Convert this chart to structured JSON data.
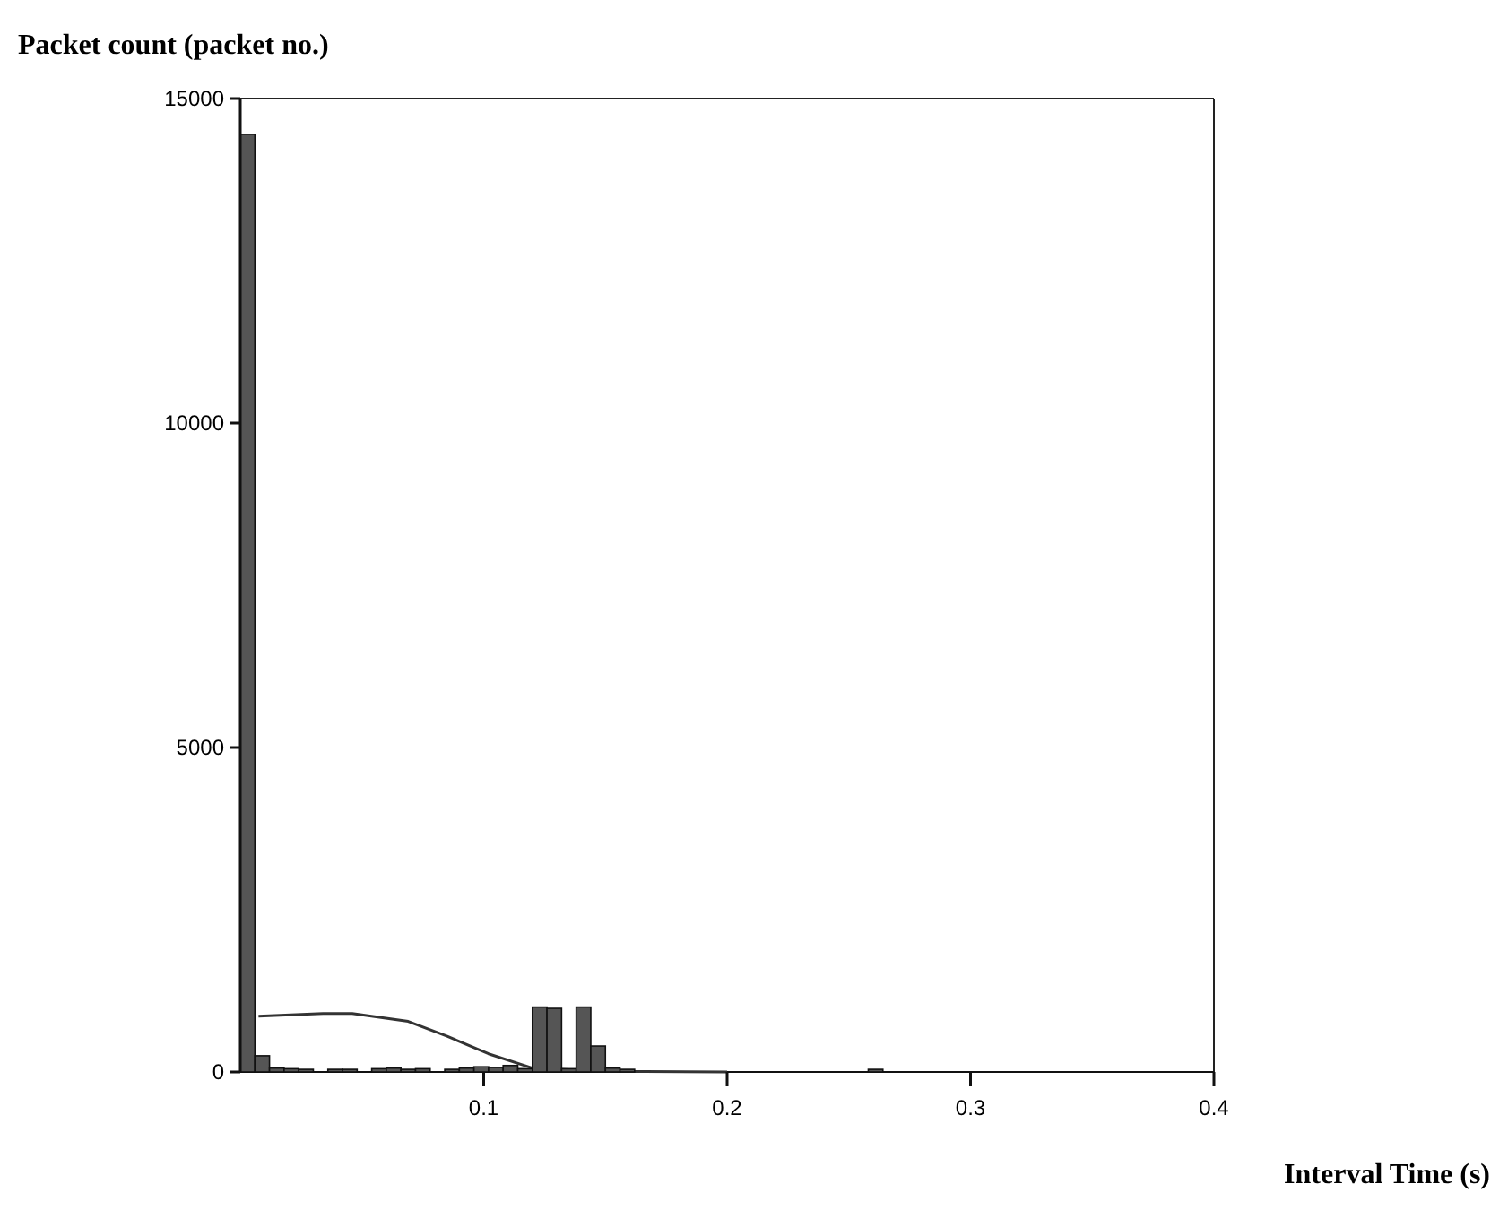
{
  "chart_data": {
    "type": "histogram",
    "ylabel": "Packet count (packet no.)",
    "xlabel": "Interval Time (s)",
    "bins": [
      0,
      0.006,
      0.012,
      0.018,
      0.024,
      0.03,
      0.036,
      0.042,
      0.048,
      0.054,
      0.06,
      0.066,
      0.072,
      0.078,
      0.084,
      0.09,
      0.096,
      0.102,
      0.108,
      0.114,
      0.12,
      0.126,
      0.132,
      0.138,
      0.144,
      0.15,
      0.156,
      0.162,
      0.168,
      0.174,
      0.18,
      0.186,
      0.192,
      0.198,
      0.204,
      0.21,
      0.216,
      0.222,
      0.228,
      0.234,
      0.24,
      0.246,
      0.252,
      0.258,
      0.264,
      0.27
    ],
    "values": [
      14450,
      250,
      60,
      50,
      40,
      0,
      40,
      40,
      0,
      50,
      60,
      40,
      50,
      0,
      40,
      60,
      80,
      70,
      100,
      50,
      1000,
      980,
      50,
      1000,
      400,
      60,
      40,
      0,
      0,
      0,
      0,
      0,
      0,
      0,
      0,
      0,
      0,
      0,
      0,
      0,
      0,
      0,
      0,
      40,
      0
    ],
    "color": "#555555",
    "series": [
      {
        "type": "line",
        "color": "#333333",
        "x": [
          0.0075,
          0.034,
          0.046,
          0.069,
          0.085,
          0.102,
          0.12,
          0.15,
          0.2
        ],
        "values": [
          860,
          900,
          900,
          780,
          550,
          280,
          60,
          10,
          0
        ]
      }
    ],
    "xlim": [
      0,
      0.4
    ],
    "ylim": [
      0,
      15000
    ],
    "xticks": [
      0.1,
      0.2,
      0.3,
      0.4
    ],
    "yticks": [
      0,
      5000,
      10000,
      15000
    ],
    "grid": false
  }
}
